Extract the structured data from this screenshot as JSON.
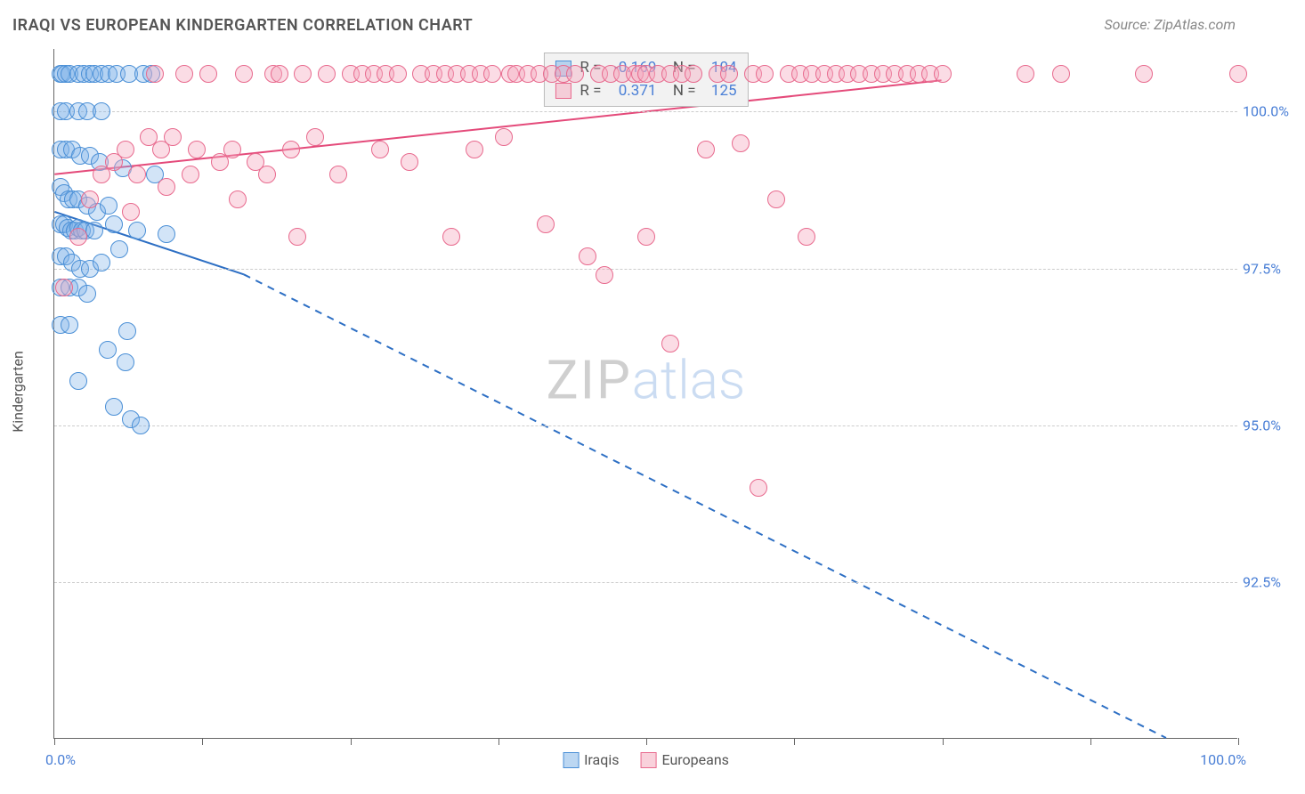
{
  "title": "IRAQI VS EUROPEAN KINDERGARTEN CORRELATION CHART",
  "source": "Source: ZipAtlas.com",
  "y_axis_title": "Kindergarten",
  "watermark": {
    "part1": "ZIP",
    "part2": "atlas"
  },
  "chart": {
    "type": "scatter",
    "xlim": [
      0,
      100
    ],
    "ylim": [
      90,
      101
    ],
    "x_ticks": [
      0,
      12.5,
      25,
      37.5,
      50,
      62.5,
      75,
      87.5,
      100
    ],
    "x_tick_labels_visible": {
      "0": "0.0%",
      "100": "100.0%"
    },
    "y_grid": [
      92.5,
      95.0,
      97.5,
      100.0
    ],
    "y_tick_labels": {
      "92.5": "92.5%",
      "95.0": "95.0%",
      "97.5": "97.5%",
      "100.0": "100.0%"
    },
    "background_color": "#ffffff",
    "grid_color": "#cccccc",
    "axis_color": "#666666",
    "marker_radius": 10,
    "series": [
      {
        "key": "iraqis",
        "label": "Iraqis",
        "fill": "#7eb1e8",
        "fill_opacity": 0.35,
        "stroke": "#4a8fd6",
        "line_color": "#2d6fc4",
        "r_value": "-0.169",
        "n_value": "104",
        "trend": {
          "x1": 0,
          "y1": 98.4,
          "xmid": 16,
          "ymid": 97.4,
          "x2": 94,
          "y2": 90.0,
          "dash_after_mid": true,
          "width": 2
        },
        "points": [
          [
            0.5,
            100.6
          ],
          [
            0.7,
            100.6
          ],
          [
            1.0,
            100.6
          ],
          [
            1.3,
            100.6
          ],
          [
            2.0,
            100.6
          ],
          [
            2.5,
            100.6
          ],
          [
            3.0,
            100.6
          ],
          [
            3.4,
            100.6
          ],
          [
            4.0,
            100.6
          ],
          [
            4.6,
            100.6
          ],
          [
            5.3,
            100.6
          ],
          [
            6.3,
            100.6
          ],
          [
            7.5,
            100.6
          ],
          [
            8.2,
            100.6
          ],
          [
            0.5,
            100.0
          ],
          [
            1.0,
            100.0
          ],
          [
            2.0,
            100.0
          ],
          [
            2.8,
            100.0
          ],
          [
            4.0,
            100.0
          ],
          [
            0.5,
            99.4
          ],
          [
            1.0,
            99.4
          ],
          [
            1.5,
            99.4
          ],
          [
            2.2,
            99.3
          ],
          [
            3.0,
            99.3
          ],
          [
            3.8,
            99.2
          ],
          [
            5.8,
            99.1
          ],
          [
            8.5,
            99.0
          ],
          [
            0.5,
            98.8
          ],
          [
            0.8,
            98.7
          ],
          [
            1.2,
            98.6
          ],
          [
            1.6,
            98.6
          ],
          [
            2.0,
            98.6
          ],
          [
            2.8,
            98.5
          ],
          [
            3.6,
            98.4
          ],
          [
            4.6,
            98.5
          ],
          [
            0.5,
            98.2
          ],
          [
            0.8,
            98.2
          ],
          [
            1.1,
            98.15
          ],
          [
            1.4,
            98.1
          ],
          [
            1.7,
            98.1
          ],
          [
            2.0,
            98.15
          ],
          [
            2.3,
            98.1
          ],
          [
            2.6,
            98.1
          ],
          [
            3.4,
            98.1
          ],
          [
            5.0,
            98.2
          ],
          [
            5.5,
            97.8
          ],
          [
            7.0,
            98.1
          ],
          [
            9.5,
            98.05
          ],
          [
            0.5,
            97.7
          ],
          [
            1.0,
            97.7
          ],
          [
            1.5,
            97.6
          ],
          [
            2.2,
            97.5
          ],
          [
            3.0,
            97.5
          ],
          [
            4.0,
            97.6
          ],
          [
            0.5,
            97.2
          ],
          [
            1.3,
            97.2
          ],
          [
            2.0,
            97.2
          ],
          [
            2.8,
            97.1
          ],
          [
            0.5,
            96.6
          ],
          [
            1.3,
            96.6
          ],
          [
            6.2,
            96.5
          ],
          [
            4.5,
            96.2
          ],
          [
            6.0,
            96.0
          ],
          [
            2.0,
            95.7
          ],
          [
            5.0,
            95.3
          ],
          [
            6.5,
            95.1
          ],
          [
            7.3,
            95.0
          ]
        ]
      },
      {
        "key": "europeans",
        "label": "Europeans",
        "fill": "#f6a8bd",
        "fill_opacity": 0.4,
        "stroke": "#e86a8e",
        "line_color": "#e44a7a",
        "r_value": "0.371",
        "n_value": "125",
        "trend": {
          "x1": 0,
          "y1": 99.0,
          "xmid": 75,
          "ymid": 100.5,
          "x2": 75,
          "y2": 100.5,
          "dash_after_mid": false,
          "width": 2
        },
        "points": [
          [
            0.8,
            97.2
          ],
          [
            2.0,
            98.0
          ],
          [
            3.0,
            98.6
          ],
          [
            4.0,
            99.0
          ],
          [
            5.0,
            99.2
          ],
          [
            6.0,
            99.4
          ],
          [
            6.5,
            98.4
          ],
          [
            7.0,
            99.0
          ],
          [
            8.0,
            99.6
          ],
          [
            8.5,
            100.6
          ],
          [
            9.0,
            99.4
          ],
          [
            9.5,
            98.8
          ],
          [
            10.0,
            99.6
          ],
          [
            11.0,
            100.6
          ],
          [
            11.5,
            99.0
          ],
          [
            12.0,
            99.4
          ],
          [
            13.0,
            100.6
          ],
          [
            14.0,
            99.2
          ],
          [
            15.0,
            99.4
          ],
          [
            15.5,
            98.6
          ],
          [
            16.0,
            100.6
          ],
          [
            17.0,
            99.2
          ],
          [
            18.0,
            99.0
          ],
          [
            18.5,
            100.6
          ],
          [
            19.0,
            100.6
          ],
          [
            20.0,
            99.4
          ],
          [
            20.5,
            98.0
          ],
          [
            21.0,
            100.6
          ],
          [
            22.0,
            99.6
          ],
          [
            23.0,
            100.6
          ],
          [
            24.0,
            99.0
          ],
          [
            25.0,
            100.6
          ],
          [
            26.0,
            100.6
          ],
          [
            27.0,
            100.6
          ],
          [
            27.5,
            99.4
          ],
          [
            28.0,
            100.6
          ],
          [
            29.0,
            100.6
          ],
          [
            30.0,
            99.2
          ],
          [
            31.0,
            100.6
          ],
          [
            32.0,
            100.6
          ],
          [
            33.0,
            100.6
          ],
          [
            33.5,
            98.0
          ],
          [
            34.0,
            100.6
          ],
          [
            35.0,
            100.6
          ],
          [
            35.5,
            99.4
          ],
          [
            36.0,
            100.6
          ],
          [
            37.0,
            100.6
          ],
          [
            38.0,
            99.6
          ],
          [
            38.5,
            100.6
          ],
          [
            39.0,
            100.6
          ],
          [
            40.0,
            100.6
          ],
          [
            41.0,
            100.6
          ],
          [
            41.5,
            98.2
          ],
          [
            42.0,
            100.6
          ],
          [
            43.0,
            100.6
          ],
          [
            44.0,
            100.6
          ],
          [
            45.0,
            97.7
          ],
          [
            46.0,
            100.6
          ],
          [
            46.5,
            97.4
          ],
          [
            47.0,
            100.6
          ],
          [
            48.0,
            100.6
          ],
          [
            49.0,
            100.6
          ],
          [
            49.5,
            100.6
          ],
          [
            50.0,
            100.6
          ],
          [
            51.0,
            100.6
          ],
          [
            52.0,
            100.6
          ],
          [
            53.0,
            100.6
          ],
          [
            54.0,
            100.6
          ],
          [
            50.0,
            98.0
          ],
          [
            52.0,
            96.3
          ],
          [
            55.0,
            99.4
          ],
          [
            56.0,
            100.6
          ],
          [
            57.0,
            100.6
          ],
          [
            58.0,
            99.5
          ],
          [
            59.0,
            100.6
          ],
          [
            59.5,
            94.0
          ],
          [
            60.0,
            100.6
          ],
          [
            61.0,
            98.6
          ],
          [
            62.0,
            100.6
          ],
          [
            63.0,
            100.6
          ],
          [
            63.5,
            98.0
          ],
          [
            64.0,
            100.6
          ],
          [
            65.0,
            100.6
          ],
          [
            66.0,
            100.6
          ],
          [
            67.0,
            100.6
          ],
          [
            68.0,
            100.6
          ],
          [
            69.0,
            100.6
          ],
          [
            70.0,
            100.6
          ],
          [
            71.0,
            100.6
          ],
          [
            72.0,
            100.6
          ],
          [
            73.0,
            100.6
          ],
          [
            74.0,
            100.6
          ],
          [
            75.0,
            100.6
          ],
          [
            82.0,
            100.6
          ],
          [
            85.0,
            100.6
          ],
          [
            92.0,
            100.6
          ],
          [
            100.0,
            100.6
          ]
        ]
      }
    ]
  },
  "bottom_legend": [
    {
      "label": "Iraqis",
      "fill": "#bcd7f2",
      "stroke": "#4a8fd6"
    },
    {
      "label": "Europeans",
      "fill": "#f9d1db",
      "stroke": "#e86a8e"
    }
  ]
}
